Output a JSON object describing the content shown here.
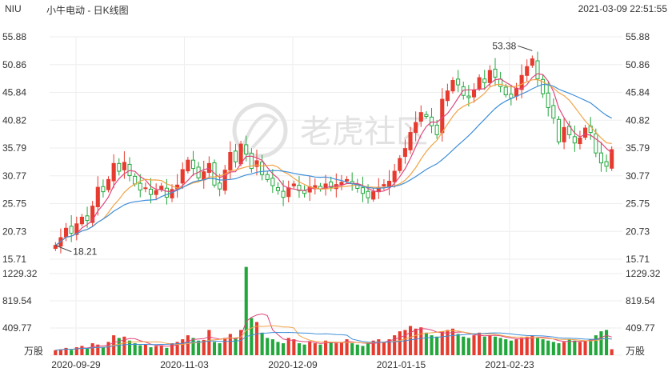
{
  "header": {
    "ticker": "NIU",
    "title": "小牛电动 - 日K线图",
    "timestamp": "2021-03-09 22:51:55"
  },
  "watermark": {
    "text": "老虎社区"
  },
  "colors": {
    "up": "#e63b2e",
    "down": "#22a73c",
    "ma5": "#e0457b",
    "ma10": "#f2a346",
    "ma20": "#3f8fd8",
    "grid": "#eeeeee",
    "text": "#333333"
  },
  "chart_data": [
    {
      "type": "candlestick",
      "title": "小牛电动 - 日K线图",
      "ylim": [
        15.71,
        55.88
      ],
      "y_ticks": [
        "55.88",
        "50.86",
        "45.84",
        "40.82",
        "35.79",
        "30.77",
        "25.75",
        "20.73",
        "15.71"
      ],
      "x_ticks": [
        "2020-09-29",
        "2020-11-03",
        "2020-12-09",
        "2021-01-15",
        "2021-02-23"
      ],
      "annotations": [
        {
          "label": "53.38",
          "value": 53.38
        },
        {
          "label": "18.21",
          "value": 18.21
        }
      ],
      "moving_averages": [
        "MA5",
        "MA10",
        "MA20"
      ],
      "closes": [
        18.2,
        19.6,
        21.3,
        20.4,
        22.1,
        23.3,
        22.7,
        25.3,
        28.7,
        27.9,
        30.1,
        33.0,
        31.6,
        33.2,
        30.8,
        29.3,
        28.2,
        28.6,
        27.4,
        28.1,
        28.9,
        26.9,
        28.3,
        29.1,
        31.9,
        33.6,
        32.1,
        30.4,
        31.5,
        33.0,
        29.1,
        28.4,
        31.8,
        35.0,
        33.3,
        36.5,
        34.7,
        32.1,
        33.5,
        31.0,
        30.1,
        29.0,
        28.1,
        26.9,
        28.6,
        29.3,
        28.1,
        27.6,
        28.8,
        29.0,
        28.4,
        29.3,
        28.7,
        29.2,
        29.6,
        30.1,
        29.4,
        28.5,
        27.6,
        26.8,
        27.9,
        28.7,
        29.2,
        29.8,
        31.6,
        33.9,
        35.7,
        38.6,
        40.4,
        42.2,
        41.5,
        39.8,
        38.2,
        44.6,
        46.1,
        48.0,
        47.2,
        45.3,
        44.9,
        46.2,
        48.5,
        47.6,
        49.8,
        48.6,
        46.9,
        45.4,
        44.8,
        46.6,
        48.9,
        50.5,
        51.9,
        48.3,
        45.6,
        43.1,
        41.2,
        36.9,
        39.5,
        38.2,
        36.7,
        37.6,
        39.4,
        38.6,
        34.9,
        33.1,
        32.5,
        35.5
      ]
    },
    {
      "type": "bar",
      "title": "万股",
      "unit_label": "万股",
      "ylim": [
        0,
        1229.32
      ],
      "y_ticks": [
        "1229.32",
        "819.54",
        "409.77"
      ],
      "values": [
        75,
        90,
        110,
        80,
        120,
        140,
        100,
        180,
        160,
        120,
        200,
        300,
        260,
        280,
        220,
        180,
        150,
        160,
        120,
        140,
        150,
        110,
        180,
        200,
        240,
        300,
        260,
        220,
        230,
        380,
        200,
        180,
        260,
        320,
        260,
        380,
        1330,
        560,
        500,
        340,
        260,
        240,
        200,
        180,
        260,
        240,
        180,
        160,
        200,
        180,
        160,
        220,
        200,
        180,
        200,
        240,
        180,
        160,
        140,
        180,
        220,
        240,
        200,
        240,
        300,
        360,
        380,
        440,
        400,
        420,
        340,
        300,
        280,
        360,
        380,
        400,
        320,
        280,
        260,
        300,
        340,
        280,
        300,
        280,
        260,
        240,
        220,
        240,
        260,
        280,
        300,
        260,
        240,
        220,
        200,
        180,
        200,
        240,
        220,
        200,
        220,
        240,
        300,
        360,
        380,
        90
      ]
    }
  ]
}
